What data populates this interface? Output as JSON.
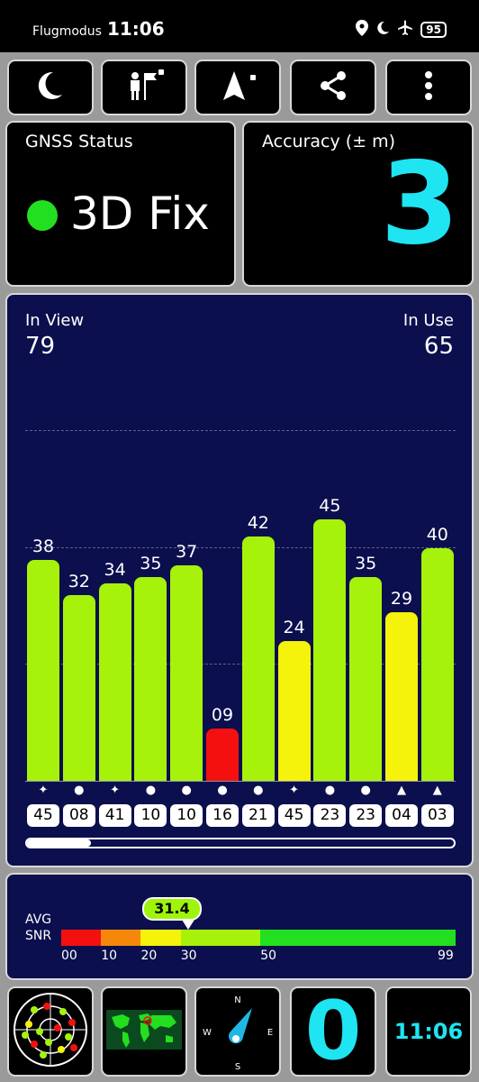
{
  "status_bar": {
    "mode": "Flugmodus",
    "time": "11:06",
    "battery": "95",
    "icons": [
      "location-icon",
      "moon-icon",
      "airplane-icon",
      "battery-icon"
    ]
  },
  "toolbar": {
    "buttons": [
      {
        "name": "night-mode",
        "icon": "moon-icon"
      },
      {
        "name": "tracking",
        "icon": "person-flag-icon",
        "locked": true
      },
      {
        "name": "navigation",
        "icon": "navigation-arrow-icon",
        "locked": true
      },
      {
        "name": "share",
        "icon": "share-icon"
      },
      {
        "name": "menu",
        "icon": "more-vert-icon"
      }
    ]
  },
  "gnss_status": {
    "title": "GNSS Status",
    "value": "3D Fix",
    "indicator_color": "#22e01f"
  },
  "accuracy": {
    "title": "Accuracy (± m)",
    "value": "3"
  },
  "satellites": {
    "in_view_label": "In View",
    "in_view": "79",
    "in_use_label": "In Use",
    "in_use": "65"
  },
  "chart_data": {
    "type": "bar",
    "ylim": [
      0,
      60
    ],
    "grid": true,
    "bars": [
      {
        "snr": 38,
        "prn": "45",
        "symbol": "✦",
        "color": "#a6f20b"
      },
      {
        "snr": 32,
        "prn": "08",
        "symbol": "●",
        "color": "#a6f20b"
      },
      {
        "snr": 34,
        "prn": "41",
        "symbol": "✦",
        "color": "#a6f20b"
      },
      {
        "snr": 35,
        "prn": "10",
        "symbol": "●",
        "color": "#a6f20b"
      },
      {
        "snr": 37,
        "prn": "10",
        "symbol": "●",
        "color": "#a6f20b"
      },
      {
        "snr": 9,
        "prn": "16",
        "symbol": "●",
        "color": "#f51010"
      },
      {
        "snr": 42,
        "prn": "21",
        "symbol": "●",
        "color": "#a6f20b"
      },
      {
        "snr": 24,
        "prn": "45",
        "symbol": "✦",
        "color": "#f5f20b"
      },
      {
        "snr": 45,
        "prn": "23",
        "symbol": "●",
        "color": "#a6f20b"
      },
      {
        "snr": 35,
        "prn": "23",
        "symbol": "●",
        "color": "#a6f20b"
      },
      {
        "snr": 29,
        "prn": "04",
        "symbol": "▲",
        "color": "#f5f20b"
      },
      {
        "snr": 40,
        "prn": "03",
        "symbol": "▲",
        "color": "#a6f20b"
      }
    ],
    "scroll_position": 0.15
  },
  "snr_scale": {
    "label_line1": "AVG",
    "label_line2": "SNR",
    "avg_value": "31.4",
    "max": 99,
    "segments": [
      {
        "from": 0,
        "to": 10,
        "color": "#f51010"
      },
      {
        "from": 10,
        "to": 20,
        "color": "#f5870b"
      },
      {
        "from": 20,
        "to": 30,
        "color": "#f5f20b"
      },
      {
        "from": 30,
        "to": 50,
        "color": "#a6f20b"
      },
      {
        "from": 50,
        "to": 99,
        "color": "#22e01f"
      }
    ],
    "ticks": [
      "00",
      "10",
      "20",
      "30",
      "50",
      "99"
    ]
  },
  "bottom_tiles": {
    "speed": "0",
    "clock": "11:06",
    "compass_labels": {
      "n": "N",
      "e": "E",
      "s": "S",
      "w": "W"
    }
  }
}
